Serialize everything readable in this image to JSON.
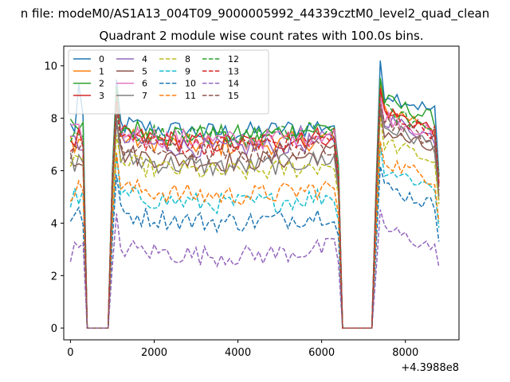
{
  "figure": {
    "suptitle": "n file: modeM0/AS1A13_004T09_9000005992_44339cztM0_level2_quad_clean",
    "title": "Quadrant 2 module wise count rates with 100.0s bins.",
    "x_offset_label": "+4.3988e8"
  },
  "chart_data": {
    "type": "line",
    "title": "Quadrant 2 module wise count rates with 100.0s bins.",
    "xlabel": "",
    "ylabel": "",
    "xlim": [
      -160,
      9280
    ],
    "ylim": [
      -0.45,
      10.75
    ],
    "xticks": [
      0,
      2000,
      4000,
      6000,
      8000
    ],
    "xtick_labels": [
      "0",
      "2000",
      "4000",
      "6000",
      "8000"
    ],
    "yticks": [
      0,
      2,
      4,
      6,
      8,
      10
    ],
    "ytick_labels": [
      "0",
      "2",
      "4",
      "6",
      "8",
      "10"
    ],
    "x_offset": "+4.3988e8",
    "grid": false,
    "legend": {
      "placement": "top-left",
      "columns": 4
    },
    "segments": {
      "seg1_x": [
        0,
        100,
        200,
        300
      ],
      "gap1_x": [
        400,
        500,
        600,
        700,
        800,
        900
      ],
      "seg2_start": 1000,
      "seg2_end": 6400,
      "gap2_x": [
        6500,
        6600,
        6700,
        6800,
        6900,
        7000,
        7100,
        7200
      ],
      "seg3_start": 7300,
      "seg3_end": 8800,
      "bin": 100
    },
    "series": [
      {
        "name": "0",
        "color": "#1f77b4",
        "dash": "solid",
        "base": 7.8,
        "peak": 8.9
      },
      {
        "name": "1",
        "color": "#ff7f0e",
        "dash": "solid",
        "base": 7.3,
        "peak": 8.3
      },
      {
        "name": "2",
        "color": "#2ca02c",
        "dash": "solid",
        "base": 7.7,
        "peak": 8.6
      },
      {
        "name": "3",
        "color": "#d62728",
        "dash": "solid",
        "base": 7.4,
        "peak": 8.2
      },
      {
        "name": "4",
        "color": "#9467bd",
        "dash": "solid",
        "base": 7.2,
        "peak": 7.9
      },
      {
        "name": "5",
        "color": "#8c564b",
        "dash": "solid",
        "base": 6.7,
        "peak": 7.4
      },
      {
        "name": "6",
        "color": "#e377c2",
        "dash": "solid",
        "base": 7.5,
        "peak": 8.0
      },
      {
        "name": "7",
        "color": "#7f7f7f",
        "dash": "solid",
        "base": 6.5,
        "peak": 7.6
      },
      {
        "name": "8",
        "color": "#bcbd22",
        "dash": "dashed",
        "base": 6.3,
        "peak": 7.0
      },
      {
        "name": "9",
        "color": "#17becf",
        "dash": "dashed",
        "base": 5.1,
        "peak": 6.0
      },
      {
        "name": "10",
        "color": "#1f77b4",
        "dash": "dashed",
        "base": 4.4,
        "peak": 5.3
      },
      {
        "name": "11",
        "color": "#ff7f0e",
        "dash": "dashed",
        "base": 5.4,
        "peak": 6.3
      },
      {
        "name": "12",
        "color": "#2ca02c",
        "dash": "dashed",
        "base": 7.6,
        "peak": 8.2
      },
      {
        "name": "13",
        "color": "#d62728",
        "dash": "dashed",
        "base": 7.3,
        "peak": 8.1
      },
      {
        "name": "14",
        "color": "#9467bd",
        "dash": "dashed",
        "base": 3.1,
        "peak": 3.7
      },
      {
        "name": "15",
        "color": "#8c564b",
        "dash": "dashed",
        "base": 7.0,
        "peak": 7.8
      }
    ]
  }
}
